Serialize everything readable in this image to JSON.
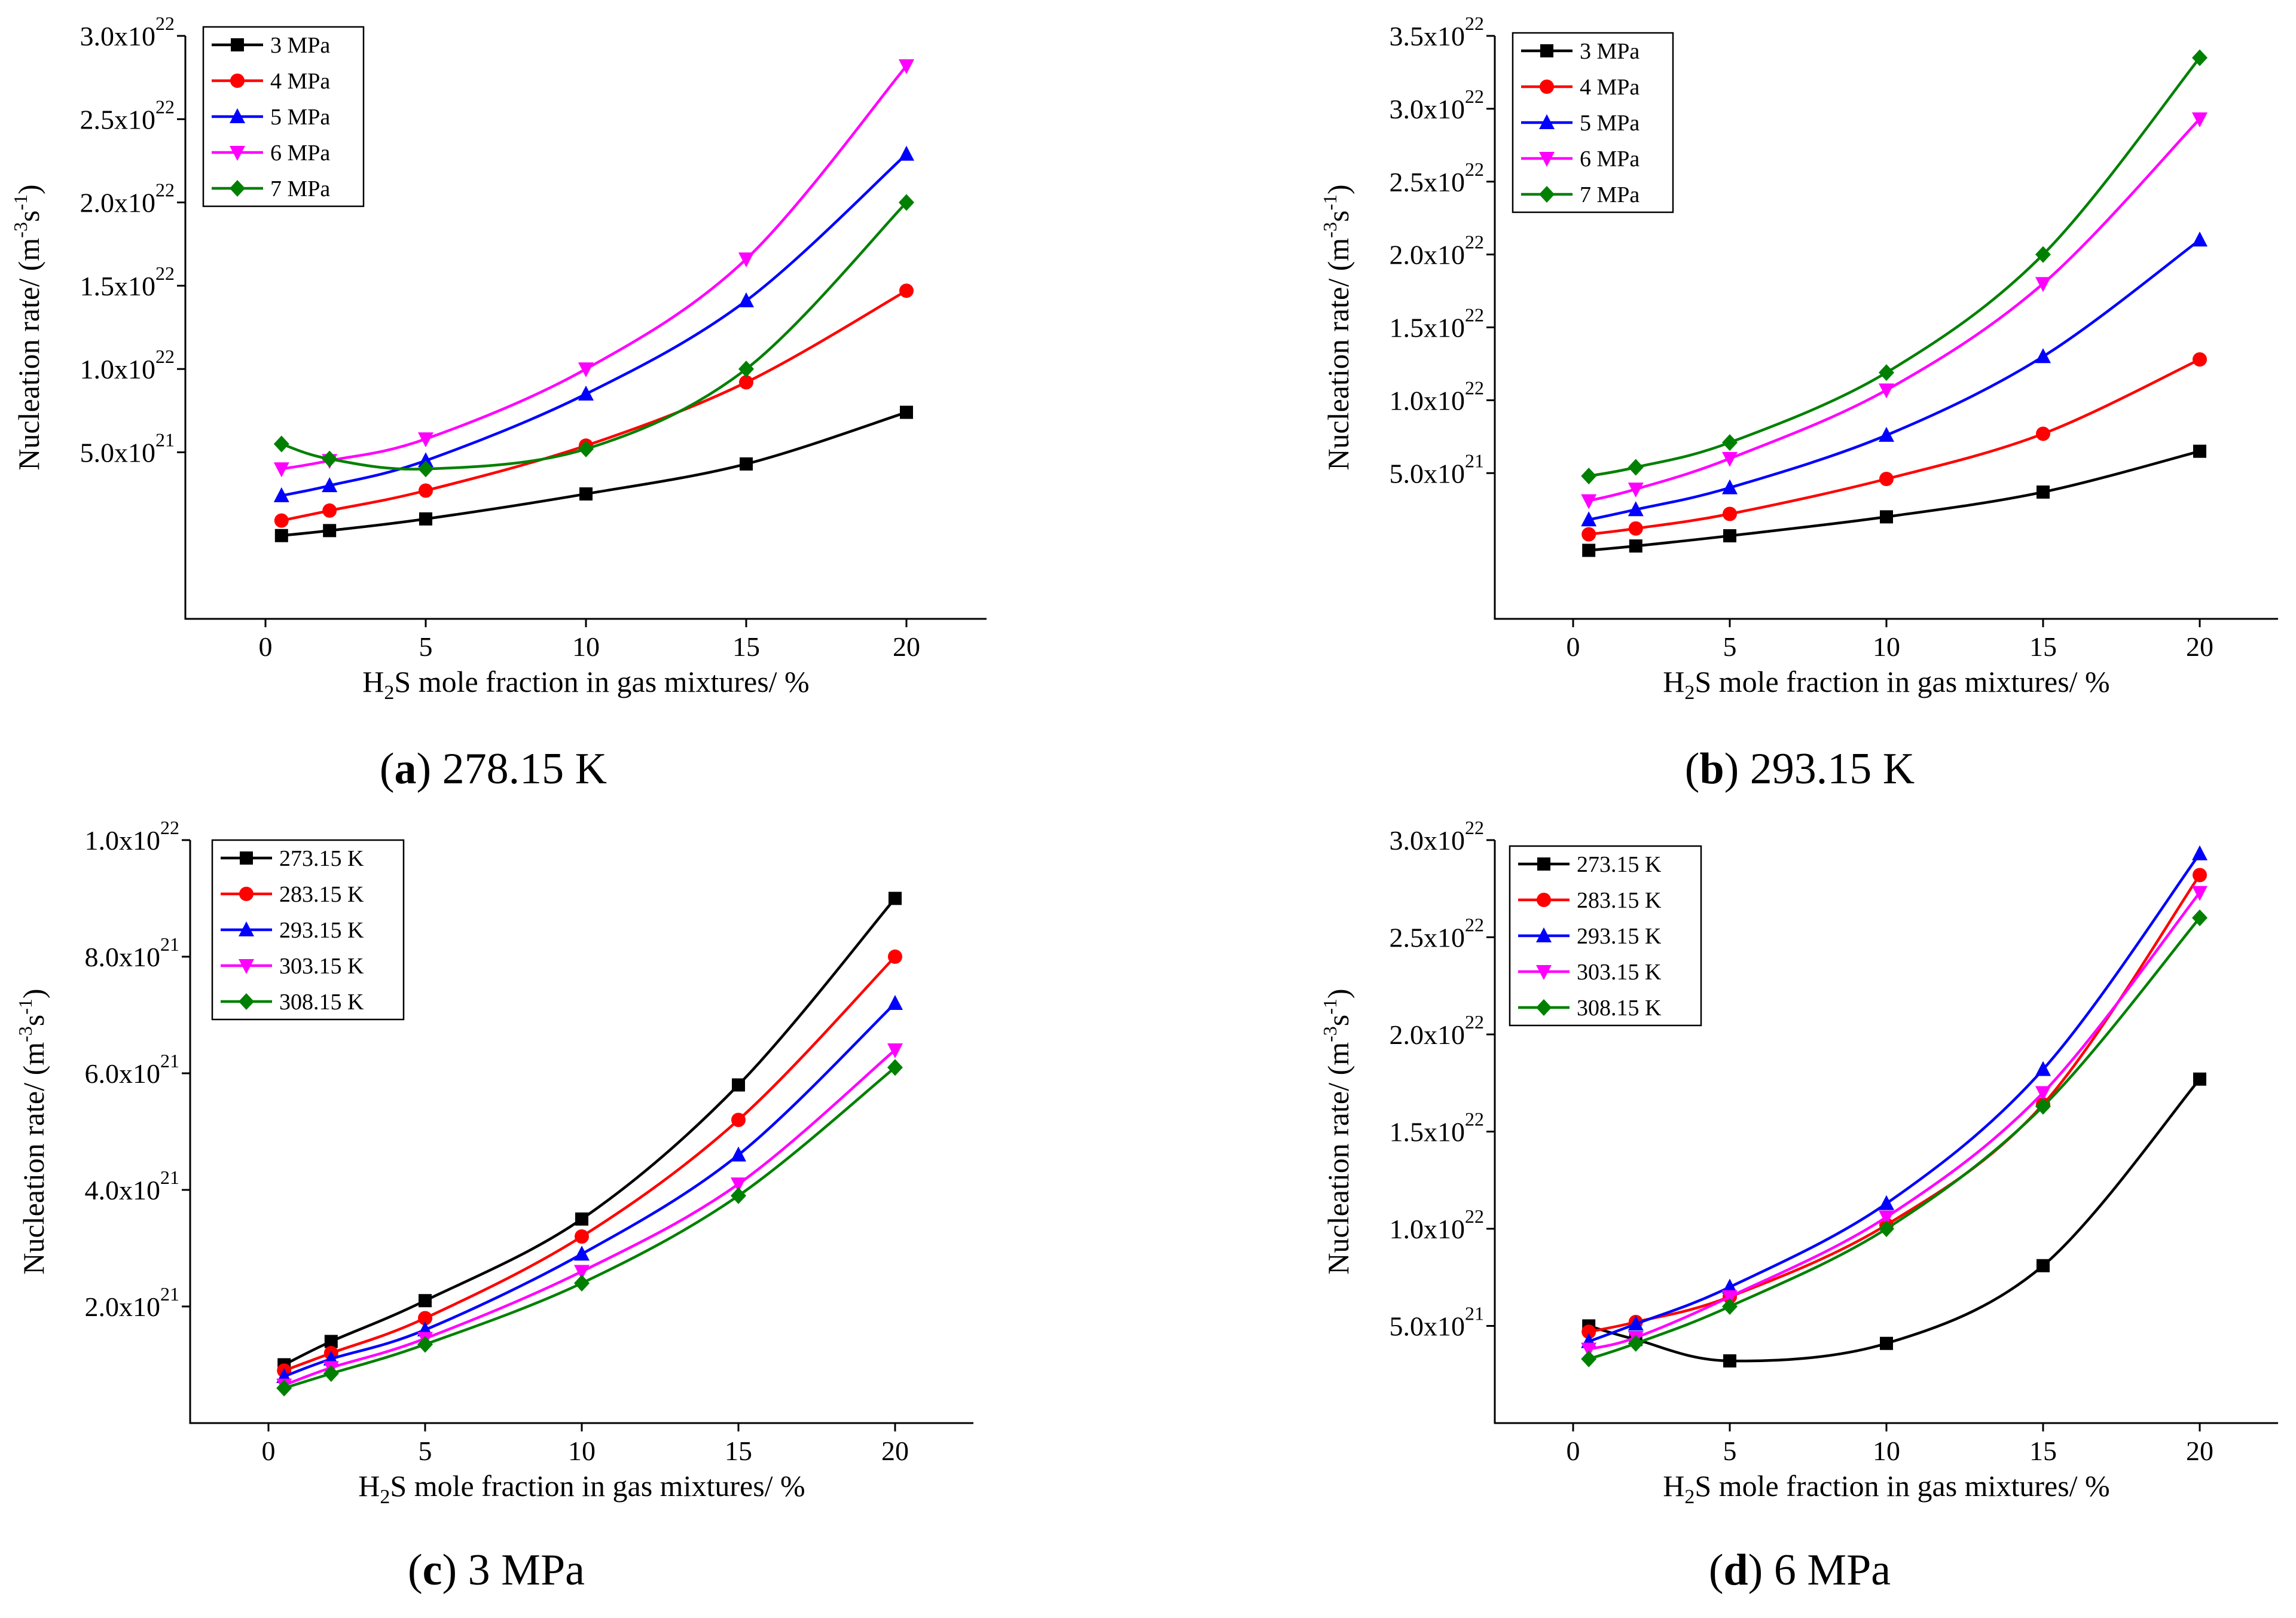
{
  "figure": {
    "colors": {
      "black": "#000000",
      "red": "#ff0000",
      "blue": "#0000ff",
      "magenta": "#ff00ff",
      "green": "#008000"
    },
    "markers": [
      "square",
      "circle",
      "triangle-up",
      "triangle-down",
      "diamond"
    ]
  },
  "chart_data": [
    {
      "type": "line",
      "caption_letter": "a",
      "caption_text": "278.15 K",
      "xlabel_parts": [
        "H",
        "2",
        "S mole fraction in gas mixtures/ %"
      ],
      "ylabel_parts": [
        "Nucleation rate/ (m",
        "-3",
        "s",
        "-1",
        ")"
      ],
      "x_ticks": [
        0,
        5,
        10,
        15,
        20
      ],
      "xlim": [
        -2.5,
        22.5
      ],
      "ylim": [
        -0.5,
        3.0
      ],
      "y_ticks": [
        {
          "value": 0.5,
          "mantissa": "5.0x10",
          "exp": "21"
        },
        {
          "value": 1.0,
          "mantissa": "1.0x10",
          "exp": "22"
        },
        {
          "value": 1.5,
          "mantissa": "1.5x10",
          "exp": "22"
        },
        {
          "value": 2.0,
          "mantissa": "2.0x10",
          "exp": "22"
        },
        {
          "value": 2.5,
          "mantissa": "2.5x10",
          "exp": "22"
        },
        {
          "value": 3.0,
          "mantissa": "3.0x10",
          "exp": "22"
        }
      ],
      "y_unit_note": "values in units of 1e22 m^-3 s^-1",
      "x": [
        0.5,
        2,
        5,
        10,
        15,
        20
      ],
      "series": [
        {
          "name": "3 MPa",
          "color": "#000000",
          "marker": "square",
          "values": [
            0.0,
            0.03,
            0.1,
            0.25,
            0.43,
            0.74
          ]
        },
        {
          "name": "4 MPa",
          "color": "#ff0000",
          "marker": "circle",
          "values": [
            0.09,
            0.15,
            0.27,
            0.54,
            0.92,
            1.47
          ]
        },
        {
          "name": "5 MPa",
          "color": "#0000ff",
          "marker": "triangle-up",
          "values": [
            0.24,
            0.3,
            0.45,
            0.85,
            1.41,
            2.29
          ]
        },
        {
          "name": "6 MPa",
          "color": "#ff00ff",
          "marker": "triangle-down",
          "values": [
            0.4,
            0.45,
            0.58,
            1.0,
            1.66,
            2.82
          ]
        },
        {
          "name": "7 MPa",
          "color": "#008000",
          "marker": "diamond",
          "values": [
            0.55,
            0.46,
            0.4,
            0.52,
            1.0,
            2.0
          ]
        }
      ]
    },
    {
      "type": "line",
      "caption_letter": "b",
      "caption_text": "293.15 K",
      "xlabel_parts": [
        "H",
        "2",
        "S mole fraction in gas mixtures/ %"
      ],
      "ylabel_parts": [
        "Nucleation rate/ (m",
        "-3",
        "s",
        "-1",
        ")"
      ],
      "x_ticks": [
        0,
        5,
        10,
        15,
        20
      ],
      "xlim": [
        -2.5,
        22.5
      ],
      "ylim": [
        -0.5,
        3.5
      ],
      "y_ticks": [
        {
          "value": 0.5,
          "mantissa": "5.0x10",
          "exp": "21"
        },
        {
          "value": 1.0,
          "mantissa": "1.0x10",
          "exp": "22"
        },
        {
          "value": 1.5,
          "mantissa": "1.5x10",
          "exp": "22"
        },
        {
          "value": 2.0,
          "mantissa": "2.0x10",
          "exp": "22"
        },
        {
          "value": 2.5,
          "mantissa": "2.5x10",
          "exp": "22"
        },
        {
          "value": 3.0,
          "mantissa": "3.0x10",
          "exp": "22"
        },
        {
          "value": 3.5,
          "mantissa": "3.5x10",
          "exp": "22"
        }
      ],
      "y_unit_note": "values in units of 1e22 m^-3 s^-1",
      "x": [
        0.5,
        2,
        5,
        10,
        15,
        20
      ],
      "series": [
        {
          "name": "3 MPa",
          "color": "#000000",
          "marker": "square",
          "values": [
            -0.03,
            0.0,
            0.07,
            0.2,
            0.37,
            0.65
          ]
        },
        {
          "name": "4 MPa",
          "color": "#ff0000",
          "marker": "circle",
          "values": [
            0.08,
            0.12,
            0.22,
            0.46,
            0.77,
            1.28
          ]
        },
        {
          "name": "5 MPa",
          "color": "#0000ff",
          "marker": "triangle-up",
          "values": [
            0.18,
            0.25,
            0.4,
            0.76,
            1.3,
            2.1
          ]
        },
        {
          "name": "6 MPa",
          "color": "#ff00ff",
          "marker": "triangle-down",
          "values": [
            0.31,
            0.39,
            0.6,
            1.07,
            1.8,
            2.93
          ]
        },
        {
          "name": "7 MPa",
          "color": "#008000",
          "marker": "diamond",
          "values": [
            0.48,
            0.54,
            0.71,
            1.19,
            2.0,
            3.35
          ]
        }
      ]
    },
    {
      "type": "line",
      "caption_letter": "c",
      "caption_text": "3 MPa",
      "xlabel_parts": [
        "H",
        "2",
        "S mole fraction in gas mixtures/ %"
      ],
      "ylabel_parts": [
        "Nucleation rate/ (m",
        "-3",
        "s",
        "-1",
        ")"
      ],
      "x_ticks": [
        0,
        5,
        10,
        15,
        20
      ],
      "xlim": [
        -2.5,
        22.5
      ],
      "ylim": [
        0.0,
        10.0
      ],
      "y_ticks": [
        {
          "value": 2.0,
          "mantissa": "2.0x10",
          "exp": "21"
        },
        {
          "value": 4.0,
          "mantissa": "4.0x10",
          "exp": "21"
        },
        {
          "value": 6.0,
          "mantissa": "6.0x10",
          "exp": "21"
        },
        {
          "value": 8.0,
          "mantissa": "8.0x10",
          "exp": "21"
        },
        {
          "value": 10.0,
          "mantissa": "1.0x10",
          "exp": "22"
        }
      ],
      "y_unit_note": "values in units of 1e21 m^-3 s^-1",
      "x": [
        0.5,
        2,
        5,
        10,
        15,
        20
      ],
      "series": [
        {
          "name": "273.15 K",
          "color": "#000000",
          "marker": "square",
          "values": [
            1.0,
            1.4,
            2.1,
            3.5,
            5.8,
            9.0
          ]
        },
        {
          "name": "283.15 K",
          "color": "#ff0000",
          "marker": "circle",
          "values": [
            0.9,
            1.2,
            1.8,
            3.2,
            5.2,
            8.0
          ]
        },
        {
          "name": "293.15 K",
          "color": "#0000ff",
          "marker": "triangle-up",
          "values": [
            0.8,
            1.1,
            1.6,
            2.9,
            4.6,
            7.2
          ]
        },
        {
          "name": "303.15 K",
          "color": "#ff00ff",
          "marker": "triangle-down",
          "values": [
            0.65,
            0.95,
            1.45,
            2.6,
            4.1,
            6.4
          ]
        },
        {
          "name": "308.15 K",
          "color": "#008000",
          "marker": "diamond",
          "values": [
            0.6,
            0.85,
            1.35,
            2.4,
            3.9,
            6.1
          ]
        }
      ]
    },
    {
      "type": "line",
      "caption_letter": "d",
      "caption_text": "6 MPa",
      "xlabel_parts": [
        "H",
        "2",
        "S mole fraction in gas mixtures/ %"
      ],
      "ylabel_parts": [
        "Nucleation rate/ (m",
        "-3",
        "s",
        "-1",
        ")"
      ],
      "x_ticks": [
        0,
        5,
        10,
        15,
        20
      ],
      "xlim": [
        -2.5,
        22.5
      ],
      "ylim": [
        0.0,
        3.0
      ],
      "y_ticks": [
        {
          "value": 0.5,
          "mantissa": "5.0x10",
          "exp": "21"
        },
        {
          "value": 1.0,
          "mantissa": "1.0x10",
          "exp": "22"
        },
        {
          "value": 1.5,
          "mantissa": "1.5x10",
          "exp": "22"
        },
        {
          "value": 2.0,
          "mantissa": "2.0x10",
          "exp": "22"
        },
        {
          "value": 2.5,
          "mantissa": "2.5x10",
          "exp": "22"
        },
        {
          "value": 3.0,
          "mantissa": "3.0x10",
          "exp": "22"
        }
      ],
      "y_unit_note": "values in units of 1e22 m^-3 s^-1",
      "x": [
        0.5,
        2,
        5,
        10,
        15,
        20
      ],
      "series": [
        {
          "name": "273.15 K",
          "color": "#000000",
          "marker": "square",
          "values": [
            0.5,
            0.43,
            0.32,
            0.41,
            0.81,
            1.77
          ]
        },
        {
          "name": "283.15 K",
          "color": "#ff0000",
          "marker": "circle",
          "values": [
            0.47,
            0.52,
            0.65,
            1.02,
            1.64,
            2.82
          ]
        },
        {
          "name": "293.15 K",
          "color": "#0000ff",
          "marker": "triangle-up",
          "values": [
            0.42,
            0.51,
            0.7,
            1.13,
            1.82,
            2.93
          ]
        },
        {
          "name": "303.15 K",
          "color": "#ff00ff",
          "marker": "triangle-down",
          "values": [
            0.38,
            0.44,
            0.65,
            1.06,
            1.7,
            2.73
          ]
        },
        {
          "name": "308.15 K",
          "color": "#008000",
          "marker": "diamond",
          "values": [
            0.33,
            0.41,
            0.6,
            1.0,
            1.63,
            2.6
          ]
        }
      ]
    }
  ]
}
